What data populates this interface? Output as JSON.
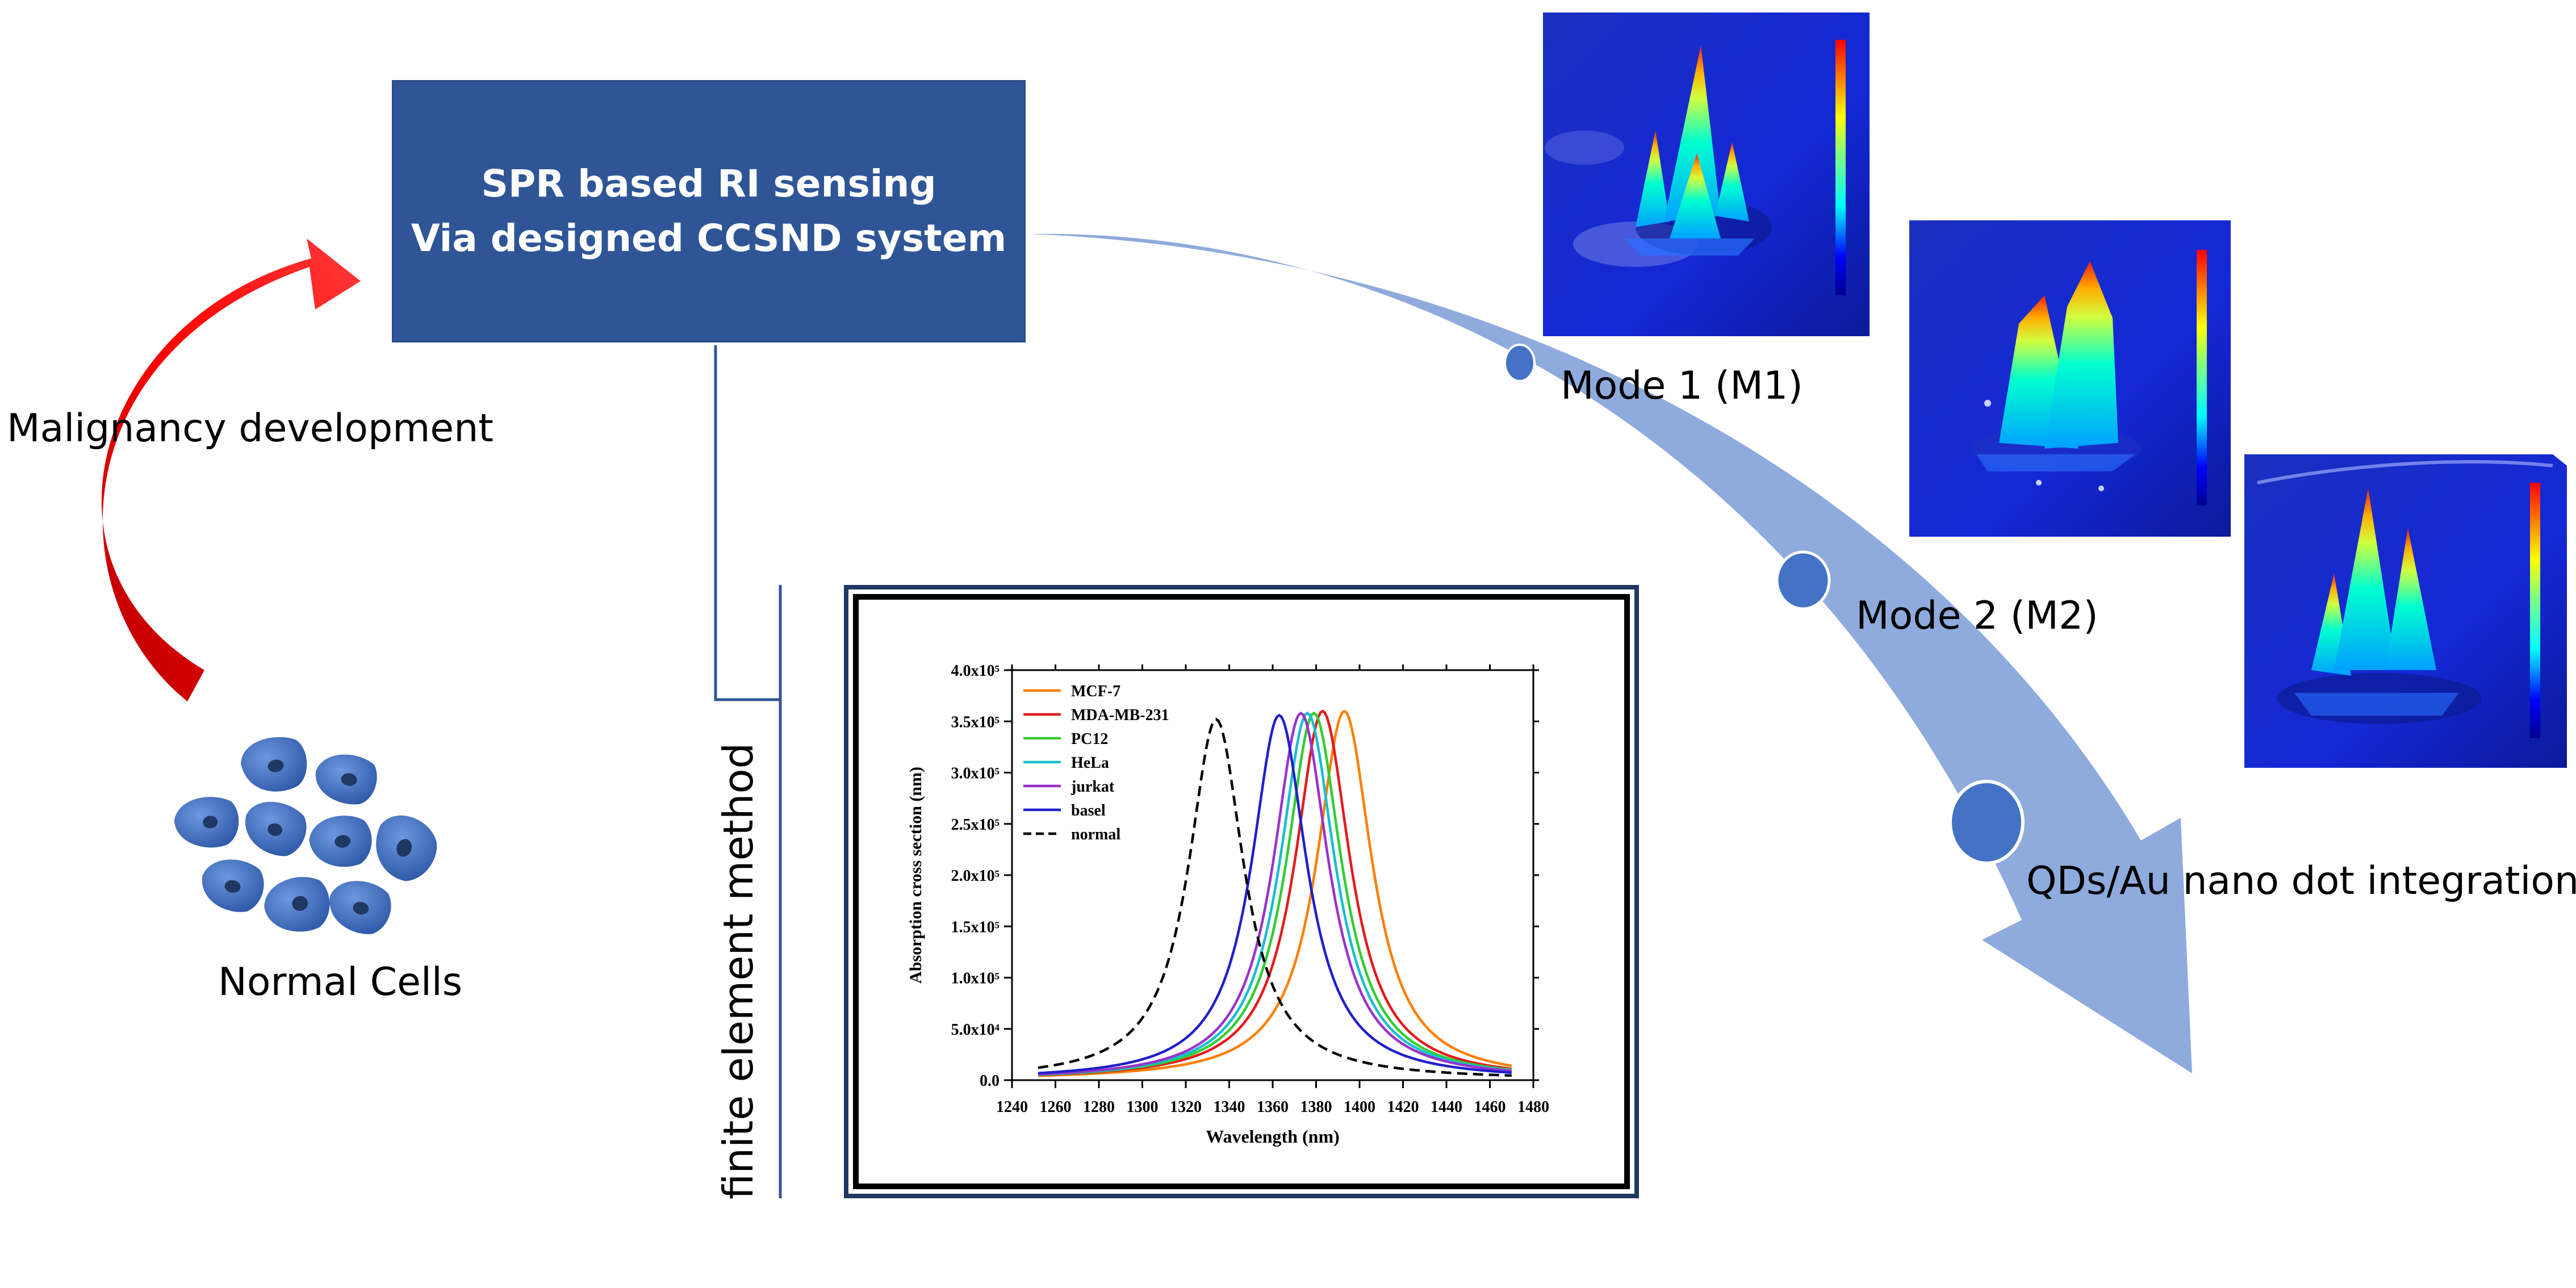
{
  "title_box": {
    "line1": "SPR based RI sensing",
    "line2": "Via designed CCSND system"
  },
  "labels": {
    "malignancy": "Malignancy development",
    "normal_cells": "Normal Cells",
    "mode1": "Mode 1 (M1)",
    "mode2": "Mode 2 (M2)",
    "qd_integration": "QDs/Au nano dot integration",
    "fem": "finite element method"
  },
  "colors": {
    "box_fill": "#2f5597",
    "big_arrow": "#8faadc",
    "red_arrow": "#ff0000",
    "cells": "#4472c4",
    "connector": "#2f5597"
  },
  "chart_data": {
    "type": "line",
    "xlabel": "Wavelength (nm)",
    "ylabel": "Absorption cross section (nm)",
    "xlim": [
      1240,
      1480
    ],
    "ylim": [
      0,
      400000
    ],
    "x_ticks": [
      "1240",
      "1260",
      "1280",
      "1300",
      "1320",
      "1340",
      "1360",
      "1380",
      "1400",
      "1420",
      "1440",
      "1460",
      "1480"
    ],
    "y_ticks": [
      "0.0",
      "5.0x10⁴",
      "1.0x10⁵",
      "1.5x10⁵",
      "2.0x10⁵",
      "2.5x10⁵",
      "3.0x10⁵",
      "3.5x10⁵",
      "4.0x10⁵"
    ],
    "legend_position": "top-left",
    "series": [
      {
        "name": "MCF-7",
        "color": "#ff7f00",
        "dash": false,
        "peak_x": 1393,
        "peak_y": 360000,
        "width": 15.5,
        "x_range": [
          1252,
          1470
        ]
      },
      {
        "name": "MDA-MB-231",
        "color": "#e31a1c",
        "dash": false,
        "peak_x": 1383,
        "peak_y": 360000,
        "width": 15.5,
        "x_range": [
          1252,
          1470
        ]
      },
      {
        "name": "PC12",
        "color": "#33cc33",
        "dash": false,
        "peak_x": 1379,
        "peak_y": 358000,
        "width": 15.5,
        "x_range": [
          1252,
          1470
        ]
      },
      {
        "name": "HeLa",
        "color": "#17becf",
        "dash": false,
        "peak_x": 1376,
        "peak_y": 358000,
        "width": 15.5,
        "x_range": [
          1252,
          1470
        ]
      },
      {
        "name": "jurkat",
        "color": "#9933cc",
        "dash": false,
        "peak_x": 1373,
        "peak_y": 358000,
        "width": 15.5,
        "x_range": [
          1252,
          1470
        ]
      },
      {
        "name": "basel",
        "color": "#1f1fcc",
        "dash": false,
        "peak_x": 1363,
        "peak_y": 356000,
        "width": 15.5,
        "x_range": [
          1252,
          1470
        ]
      },
      {
        "name": "normal",
        "color": "#000000",
        "dash": true,
        "peak_x": 1334,
        "peak_y": 352000,
        "width": 15.5,
        "x_range": [
          1252,
          1470
        ]
      }
    ]
  },
  "heatmaps": [
    {
      "name": "Mode 1",
      "peaks": 4
    },
    {
      "name": "Mode 2",
      "peaks": 2
    },
    {
      "name": "QDs/Au",
      "peaks": 3
    }
  ]
}
